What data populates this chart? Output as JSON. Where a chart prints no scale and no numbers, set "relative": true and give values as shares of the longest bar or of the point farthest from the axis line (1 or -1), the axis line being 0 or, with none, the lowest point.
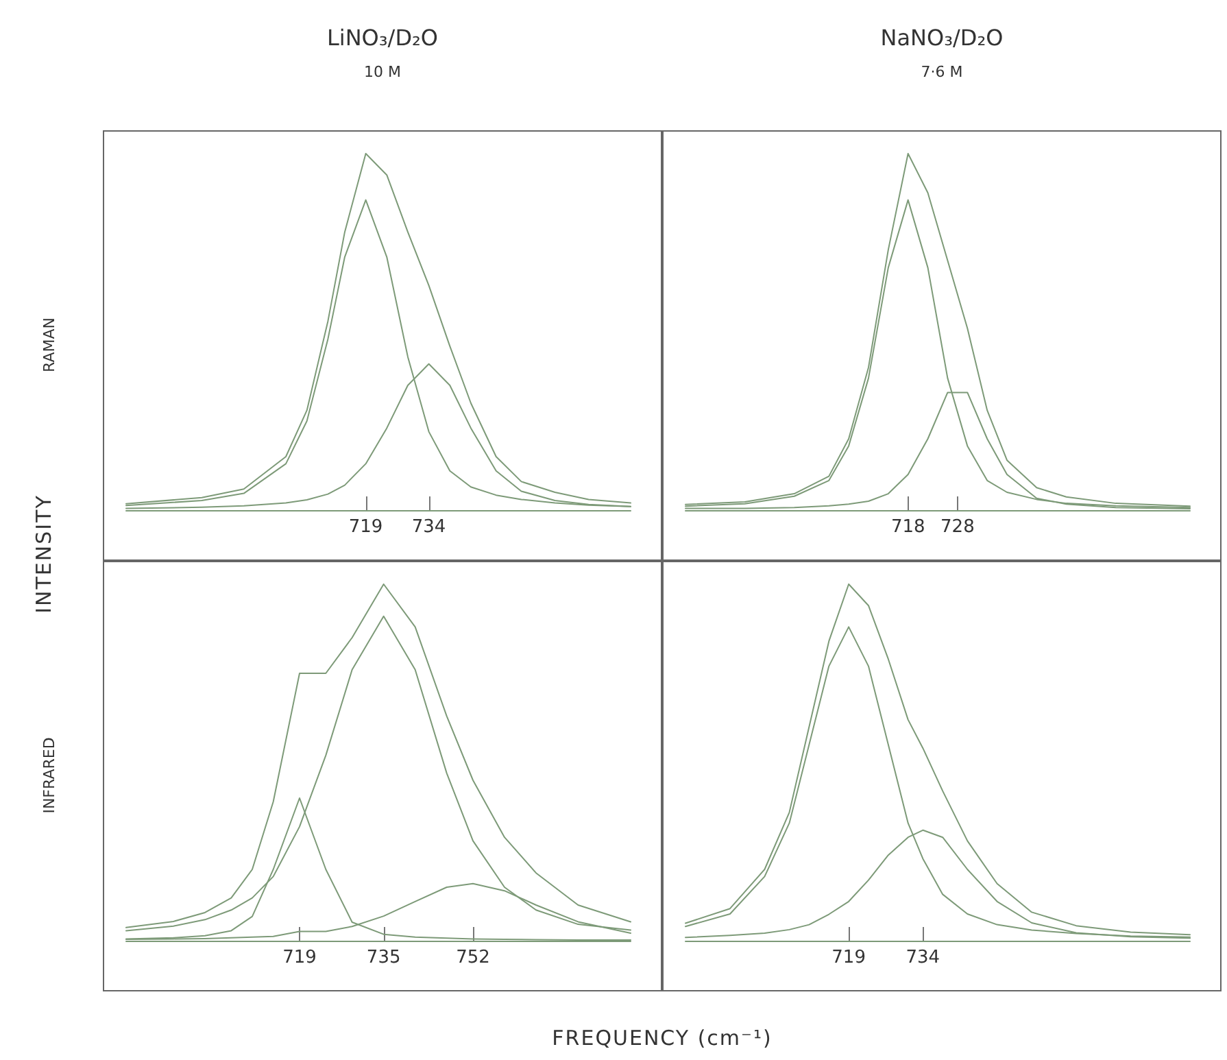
{
  "chart_data": [
    {
      "type": "line",
      "title": "LiNO₃/D₂O",
      "subtitle": "10 M",
      "ylabel": "RAMAN",
      "annotations": [
        "INTENSITY"
      ],
      "relative": true,
      "tick_labels": "x",
      "marker": "none",
      "line_style": "solid",
      "xlim": [
        662,
        782
      ],
      "xticks": [
        719,
        734
      ],
      "x": [
        662,
        680,
        690,
        700,
        705,
        710,
        714,
        719,
        724,
        729,
        734,
        739,
        744,
        750,
        756,
        764,
        772,
        782
      ],
      "series": [
        {
          "color": "#7d9a78",
          "values": [
            0.018,
            0.035,
            0.059,
            0.15,
            0.28,
            0.53,
            0.78,
            1.0,
            0.94,
            0.78,
            0.63,
            0.46,
            0.3,
            0.15,
            0.08,
            0.05,
            0.03,
            0.02
          ]
        },
        {
          "color": "#7d9a78",
          "values": [
            0.013,
            0.027,
            0.047,
            0.13,
            0.25,
            0.48,
            0.71,
            0.87,
            0.71,
            0.43,
            0.22,
            0.11,
            0.065,
            0.042,
            0.03,
            0.02,
            0.014,
            0.01
          ]
        },
        {
          "color": "#7d9a78",
          "values": [
            0.005,
            0.008,
            0.012,
            0.02,
            0.029,
            0.045,
            0.07,
            0.13,
            0.23,
            0.35,
            0.41,
            0.35,
            0.23,
            0.11,
            0.053,
            0.027,
            0.016,
            0.01
          ]
        }
      ]
    },
    {
      "type": "line",
      "title": "NaNO₃/D₂O",
      "subtitle": "7·6 M",
      "relative": true,
      "tick_labels": "x",
      "marker": "none",
      "line_style": "solid",
      "xlim": [
        673,
        775
      ],
      "xticks": [
        718,
        728
      ],
      "x": [
        673,
        685,
        695,
        702,
        706,
        710,
        714,
        718,
        722,
        726,
        730,
        734,
        738,
        744,
        750,
        760,
        775
      ],
      "series": [
        {
          "color": "#7d9a78",
          "values": [
            0.016,
            0.023,
            0.046,
            0.095,
            0.2,
            0.4,
            0.73,
            1.0,
            0.89,
            0.7,
            0.51,
            0.28,
            0.14,
            0.063,
            0.037,
            0.019,
            0.011
          ]
        },
        {
          "color": "#7d9a78",
          "values": [
            0.011,
            0.018,
            0.039,
            0.083,
            0.18,
            0.37,
            0.68,
            0.87,
            0.68,
            0.37,
            0.18,
            0.083,
            0.05,
            0.03,
            0.019,
            0.012,
            0.007
          ]
        },
        {
          "color": "#7d9a78",
          "values": [
            0.005,
            0.005,
            0.007,
            0.012,
            0.017,
            0.025,
            0.046,
            0.1,
            0.2,
            0.33,
            0.33,
            0.2,
            0.1,
            0.033,
            0.017,
            0.007,
            0.004
          ]
        }
      ]
    },
    {
      "type": "line",
      "ylabel": "INFRARED",
      "xlabel": "FREQUENCY (cm⁻¹)",
      "relative": true,
      "tick_labels": "x",
      "marker": "none",
      "line_style": "solid",
      "xlim": [
        686,
        782
      ],
      "xticks": [
        719,
        735,
        752
      ],
      "x": [
        686,
        695,
        701,
        706,
        710,
        714,
        719,
        724,
        729,
        735,
        741,
        747,
        752,
        758,
        764,
        772,
        782
      ],
      "series": [
        {
          "color": "#7d9a78",
          "values": [
            0.037,
            0.054,
            0.079,
            0.12,
            0.2,
            0.39,
            0.75,
            0.75,
            0.85,
            1.0,
            0.88,
            0.63,
            0.45,
            0.29,
            0.19,
            0.1,
            0.053
          ]
        },
        {
          "color": "#7d9a78",
          "values": [
            0.005,
            0.008,
            0.014,
            0.028,
            0.068,
            0.2,
            0.4,
            0.2,
            0.052,
            0.018,
            0.01,
            0.007,
            0.005,
            0.004,
            0.003,
            0.002,
            0.002
          ]
        },
        {
          "color": "#7d9a78",
          "values": [
            0.028,
            0.041,
            0.059,
            0.086,
            0.12,
            0.18,
            0.32,
            0.52,
            0.76,
            0.91,
            0.76,
            0.47,
            0.28,
            0.15,
            0.086,
            0.046,
            0.03
          ]
        },
        {
          "color": "#7d9a78",
          "values": [
            0.004,
            0.005,
            0.006,
            0.008,
            0.01,
            0.012,
            0.026,
            0.026,
            0.04,
            0.069,
            0.11,
            0.15,
            0.16,
            0.14,
            0.1,
            0.053,
            0.021
          ]
        }
      ]
    },
    {
      "type": "line",
      "relative": true,
      "tick_labels": "x",
      "marker": "none",
      "line_style": "solid",
      "xlim": [
        686,
        788
      ],
      "xticks": [
        719,
        734
      ],
      "x": [
        686,
        695,
        702,
        707,
        711,
        715,
        719,
        723,
        727,
        731,
        734,
        738,
        743,
        749,
        756,
        765,
        776,
        788
      ],
      "series": [
        {
          "color": "#7d9a78",
          "values": [
            0.049,
            0.09,
            0.2,
            0.36,
            0.6,
            0.84,
            1.0,
            0.94,
            0.79,
            0.62,
            0.54,
            0.42,
            0.28,
            0.16,
            0.08,
            0.042,
            0.024,
            0.017
          ]
        },
        {
          "color": "#7d9a78",
          "values": [
            0.04,
            0.075,
            0.18,
            0.33,
            0.55,
            0.77,
            0.88,
            0.77,
            0.55,
            0.33,
            0.23,
            0.13,
            0.075,
            0.045,
            0.03,
            0.02,
            0.013,
            0.01
          ]
        },
        {
          "color": "#7d9a78",
          "values": [
            0.009,
            0.015,
            0.021,
            0.031,
            0.045,
            0.074,
            0.11,
            0.17,
            0.24,
            0.29,
            0.31,
            0.29,
            0.2,
            0.11,
            0.05,
            0.022,
            0.011,
            0.007
          ]
        }
      ]
    }
  ]
}
